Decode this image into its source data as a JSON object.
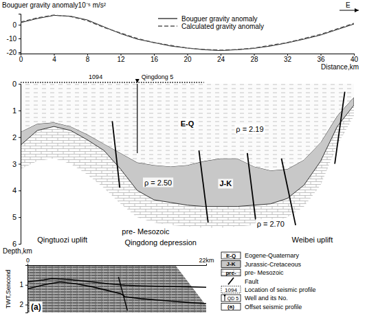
{
  "chart_data": {
    "type": "line",
    "y_label": "Bouguer gravity anomaly10⁻⁵ m/s²",
    "x_label": "Distance,km",
    "annotations": [
      "E"
    ],
    "x": [
      0,
      2,
      4,
      6,
      8,
      10,
      12,
      14,
      16,
      18,
      20,
      22,
      24,
      26,
      28,
      30,
      32,
      34,
      36,
      38,
      40
    ],
    "series": [
      {
        "name": "Bouguer gravity anomaly",
        "color": "#222222",
        "line_style": "solid",
        "values": [
          1.5,
          4.5,
          6.8,
          6.2,
          3.5,
          -1.5,
          -6.5,
          -10.5,
          -13,
          -15.5,
          -17,
          -18.2,
          -18.8,
          -18.2,
          -17.2,
          -15.5,
          -13.2,
          -10.5,
          -7.5,
          -3.5,
          0.5
        ]
      },
      {
        "name": "Calculated gravity anomaly",
        "color": "#555555",
        "line_style": "dashed",
        "values": [
          2,
          5,
          7,
          6,
          3,
          -2,
          -6,
          -10,
          -13,
          -15,
          -17,
          -18,
          -18.5,
          -18,
          -17,
          -15,
          -13,
          -10,
          -7,
          -3,
          1
        ]
      }
    ],
    "xlim": [
      0,
      40
    ],
    "xticks": [
      0,
      4,
      8,
      12,
      16,
      20,
      24,
      28,
      32,
      36,
      40
    ],
    "ylim": [
      -21,
      8
    ],
    "yticks": [
      -20,
      -10,
      0
    ],
    "legend": "top"
  },
  "section": {
    "xlim": [
      0,
      40
    ],
    "depth_label": "Depth,km",
    "depth_lim": [
      0,
      6
    ],
    "depth_ticks": [
      0,
      1,
      2,
      3,
      4,
      5,
      6
    ],
    "x": [
      0,
      2,
      4,
      6,
      8,
      10,
      12,
      14,
      16,
      18,
      20,
      22,
      24,
      26,
      28,
      30,
      32,
      34,
      36,
      38,
      40
    ],
    "base_EQ": [
      1.8,
      1.5,
      1.45,
      1.6,
      1.9,
      2.25,
      2.6,
      2.95,
      3.05,
      3.1,
      3.05,
      2.9,
      2.8,
      2.8,
      3.1,
      3.25,
      3.2,
      2.85,
      2.2,
      1.2,
      0.5
    ],
    "base_JK": [
      2.3,
      1.75,
      1.6,
      1.75,
      2.1,
      2.5,
      3.2,
      4.0,
      4.35,
      4.45,
      4.55,
      4.6,
      4.6,
      4.6,
      4.55,
      4.5,
      4.3,
      3.8,
      2.9,
      1.6,
      0.8
    ],
    "pre_Mesozoic_extent": [
      3.2,
      2.9,
      2.8,
      3.0,
      3.4,
      3.9,
      4.5,
      5.0,
      5.2,
      5.3,
      5.35,
      5.4,
      5.4,
      5.35,
      5.3,
      5.2,
      5.0,
      4.6,
      3.8,
      2.3,
      1.2
    ],
    "faults": [
      {
        "x": [
          11,
          11.9
        ],
        "depth": [
          1.4,
          3.9
        ]
      },
      {
        "x": [
          21.4,
          22.5
        ],
        "depth": [
          2.5,
          5.2
        ]
      },
      {
        "x": [
          27.2,
          28.2
        ],
        "depth": [
          2.6,
          5.1
        ]
      },
      {
        "x": [
          31.3,
          33
        ],
        "depth": [
          2.8,
          5.3
        ]
      },
      {
        "x": [
          38.9,
          37.7
        ],
        "depth": [
          0.3,
          3.0
        ]
      }
    ],
    "units": [
      "E-Q",
      "ρ = 2.19",
      "ρ = 2.50",
      "J-K",
      "pre- Mesozoic",
      "ρ = 2.70",
      "Qingtuozi uplift",
      "Qingdong depression",
      "Weibei uplift"
    ],
    "seismic_line": {
      "label": "1094",
      "x": [
        0,
        22
      ]
    },
    "well": {
      "label": "Qingdong 5",
      "x": 14,
      "depth": 2.6
    }
  },
  "seismic": {
    "panel_label": "(a)",
    "xlim": [
      0,
      22
    ],
    "xticks": [
      0,
      {
        "value": 22,
        "label": "22km"
      }
    ],
    "y_label": "TWT,Sencond",
    "ylim": [
      0,
      2.4
    ],
    "yticks": [
      1,
      2
    ],
    "horizons": [
      {
        "x": [
          0,
          2,
          3,
          5,
          8,
          10,
          11.5,
          12,
          14,
          17,
          20,
          22
        ],
        "twt": [
          0.85,
          0.75,
          0.68,
          0.72,
          0.85,
          0.95,
          1.0,
          1.02,
          1.05,
          1.08,
          1.1,
          1.12
        ]
      },
      {
        "x": [
          0,
          2,
          4,
          6,
          8,
          10,
          11.5,
          12,
          14,
          17,
          20,
          22
        ],
        "twt": [
          1.2,
          1.0,
          0.85,
          0.95,
          1.1,
          1.3,
          1.45,
          1.6,
          1.7,
          1.8,
          1.9,
          1.95
        ]
      }
    ],
    "fault": {
      "x": [
        11.2,
        12.3
      ],
      "twt": [
        0.6,
        2.3
      ]
    }
  },
  "legend": [
    {
      "symbol": "E-Q",
      "label": "Eogene-Quaternary"
    },
    {
      "symbol": "J-K",
      "label": "Jurassic-Cretaceous"
    },
    {
      "symbol": "pre-",
      "label": "pre- Mesozoic"
    },
    {
      "label": "Fault"
    },
    {
      "symbol": "1094",
      "label": "Location of seismic profile"
    },
    {
      "symbol": "QD 5",
      "label": "Well and its No."
    },
    {
      "symbol": "(a)",
      "label": "Offset seismic profile"
    }
  ]
}
